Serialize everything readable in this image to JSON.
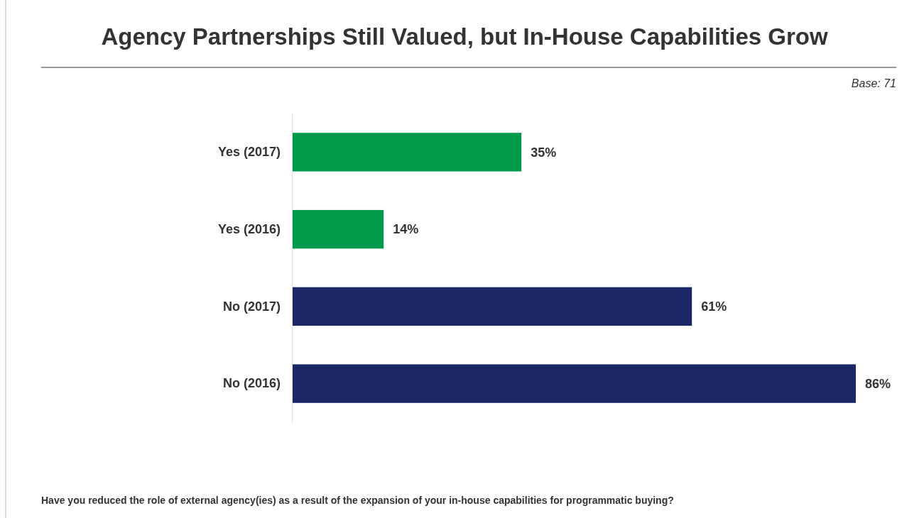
{
  "chart_data": {
    "type": "bar",
    "orientation": "horizontal",
    "title": "Agency Partnerships Still Valued, but In-House Capabilities Grow",
    "categories": [
      "Yes (2017)",
      "Yes (2016)",
      "No (2017)",
      "No (2016)"
    ],
    "values": [
      35,
      14,
      61,
      86
    ],
    "colors": [
      "#009a4a",
      "#009a4a",
      "#1c2866",
      "#1c2866"
    ],
    "value_labels": [
      "35%",
      "14%",
      "61%",
      "86%"
    ],
    "tick_labels": "y",
    "annotations": [
      "Base: 71",
      "Have you reduced the role of external agency(ies) as a result of the expansion of your in-house capabilities for programmatic buying?"
    ]
  }
}
